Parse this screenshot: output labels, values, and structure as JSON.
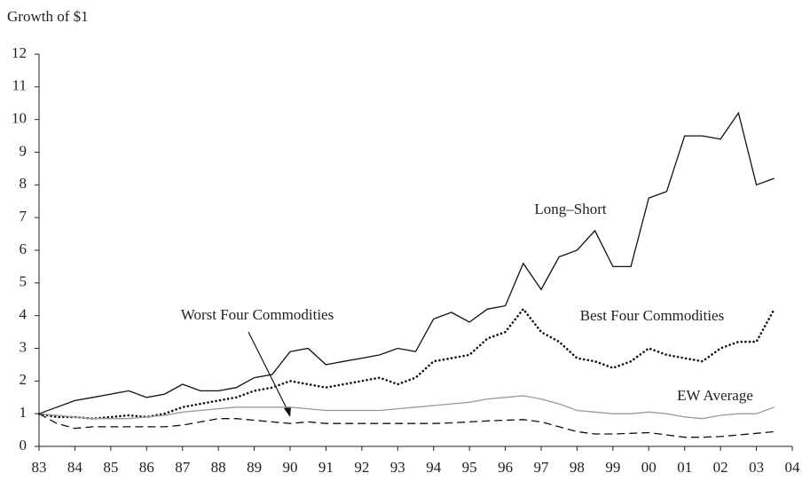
{
  "chart_data": {
    "type": "line",
    "ylabel": "Growth of $1",
    "x": [
      1983,
      1983.5,
      1984,
      1984.5,
      1985,
      1985.5,
      1986,
      1986.5,
      1987,
      1987.5,
      1988,
      1988.5,
      1989,
      1989.5,
      1990,
      1990.5,
      1991,
      1991.5,
      1992,
      1992.5,
      1993,
      1993.5,
      1994,
      1994.5,
      1995,
      1995.5,
      1996,
      1996.5,
      1997,
      1997.5,
      1998,
      1998.5,
      1999,
      1999.5,
      2000,
      2000.5,
      2001,
      2001.5,
      2002,
      2002.5,
      2003,
      2003.5
    ],
    "series": [
      {
        "name": "Long–Short",
        "color": "#111111",
        "style": "solid",
        "values": [
          1.0,
          1.2,
          1.4,
          1.5,
          1.6,
          1.7,
          1.5,
          1.6,
          1.9,
          1.7,
          1.7,
          1.8,
          2.1,
          2.2,
          2.9,
          3.0,
          2.5,
          2.6,
          2.7,
          2.8,
          3.0,
          2.9,
          3.9,
          4.1,
          3.8,
          4.2,
          4.3,
          5.6,
          4.8,
          5.8,
          6.0,
          6.6,
          5.5,
          5.5,
          7.6,
          7.8,
          9.5,
          9.5,
          9.4,
          10.2,
          8.0,
          8.2
        ]
      },
      {
        "name": "Best Four Commodities",
        "color": "#111111",
        "style": "dotted",
        "values": [
          1.0,
          0.9,
          0.9,
          0.85,
          0.9,
          0.95,
          0.9,
          1.0,
          1.2,
          1.3,
          1.4,
          1.5,
          1.7,
          1.8,
          2.0,
          1.9,
          1.8,
          1.9,
          2.0,
          2.1,
          1.9,
          2.1,
          2.6,
          2.7,
          2.8,
          3.3,
          3.5,
          4.2,
          3.5,
          3.2,
          2.7,
          2.6,
          2.4,
          2.6,
          3.0,
          2.8,
          2.7,
          2.6,
          3.0,
          3.2,
          3.2,
          4.2
        ]
      },
      {
        "name": "EW Average",
        "color": "#999999",
        "style": "solid",
        "values": [
          1.0,
          0.95,
          0.9,
          0.85,
          0.85,
          0.85,
          0.9,
          0.95,
          1.05,
          1.1,
          1.15,
          1.2,
          1.2,
          1.2,
          1.2,
          1.15,
          1.1,
          1.1,
          1.1,
          1.1,
          1.15,
          1.2,
          1.25,
          1.3,
          1.35,
          1.45,
          1.5,
          1.55,
          1.45,
          1.3,
          1.1,
          1.05,
          1.0,
          1.0,
          1.05,
          1.0,
          0.9,
          0.85,
          0.95,
          1.0,
          1.0,
          1.2
        ]
      },
      {
        "name": "Worst Four Commodities",
        "color": "#111111",
        "style": "dashed",
        "values": [
          1.0,
          0.7,
          0.55,
          0.6,
          0.6,
          0.6,
          0.6,
          0.6,
          0.65,
          0.75,
          0.85,
          0.85,
          0.8,
          0.75,
          0.7,
          0.75,
          0.7,
          0.7,
          0.7,
          0.7,
          0.7,
          0.7,
          0.7,
          0.72,
          0.75,
          0.78,
          0.8,
          0.82,
          0.75,
          0.6,
          0.45,
          0.38,
          0.38,
          0.4,
          0.42,
          0.35,
          0.28,
          0.28,
          0.3,
          0.35,
          0.4,
          0.45
        ]
      }
    ],
    "xlim": [
      1983,
      2004
    ],
    "xticks": [
      {
        "value": 1983,
        "label": "83"
      },
      {
        "value": 1984,
        "label": "84"
      },
      {
        "value": 1985,
        "label": "85"
      },
      {
        "value": 1986,
        "label": "86"
      },
      {
        "value": 1987,
        "label": "87"
      },
      {
        "value": 1988,
        "label": "88"
      },
      {
        "value": 1989,
        "label": "89"
      },
      {
        "value": 1990,
        "label": "90"
      },
      {
        "value": 1991,
        "label": "91"
      },
      {
        "value": 1992,
        "label": "92"
      },
      {
        "value": 1993,
        "label": "93"
      },
      {
        "value": 1994,
        "label": "94"
      },
      {
        "value": 1995,
        "label": "95"
      },
      {
        "value": 1996,
        "label": "96"
      },
      {
        "value": 1997,
        "label": "97"
      },
      {
        "value": 1998,
        "label": "98"
      },
      {
        "value": 1999,
        "label": "99"
      },
      {
        "value": 2000,
        "label": "00"
      },
      {
        "value": 2001,
        "label": "01"
      },
      {
        "value": 2002,
        "label": "02"
      },
      {
        "value": 2003,
        "label": "03"
      },
      {
        "value": 2004,
        "label": "04"
      }
    ],
    "ylim": [
      0,
      12
    ],
    "yticks": [
      0,
      1,
      2,
      3,
      4,
      5,
      6,
      7,
      8,
      9,
      10,
      11,
      12
    ],
    "grid": false
  }
}
